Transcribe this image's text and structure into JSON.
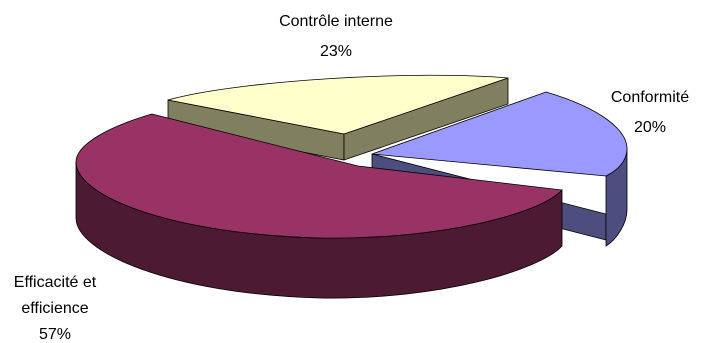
{
  "chart_data": {
    "type": "pie",
    "style": "3d-exploded",
    "slices": [
      {
        "label_lines": [
          "Contrôle interne"
        ],
        "percent_label": "23%",
        "value": 23,
        "top_color": "#ffffcc",
        "side_color": "#808060"
      },
      {
        "label_lines": [
          "Conformité"
        ],
        "percent_label": "20%",
        "value": 20,
        "top_color": "#9999ff",
        "side_color": "#4d4d80"
      },
      {
        "label_lines": [
          "Efficacité et",
          "efficience"
        ],
        "percent_label": "57%",
        "value": 57,
        "top_color": "#993366",
        "side_color": "#4d1a33"
      }
    ]
  }
}
